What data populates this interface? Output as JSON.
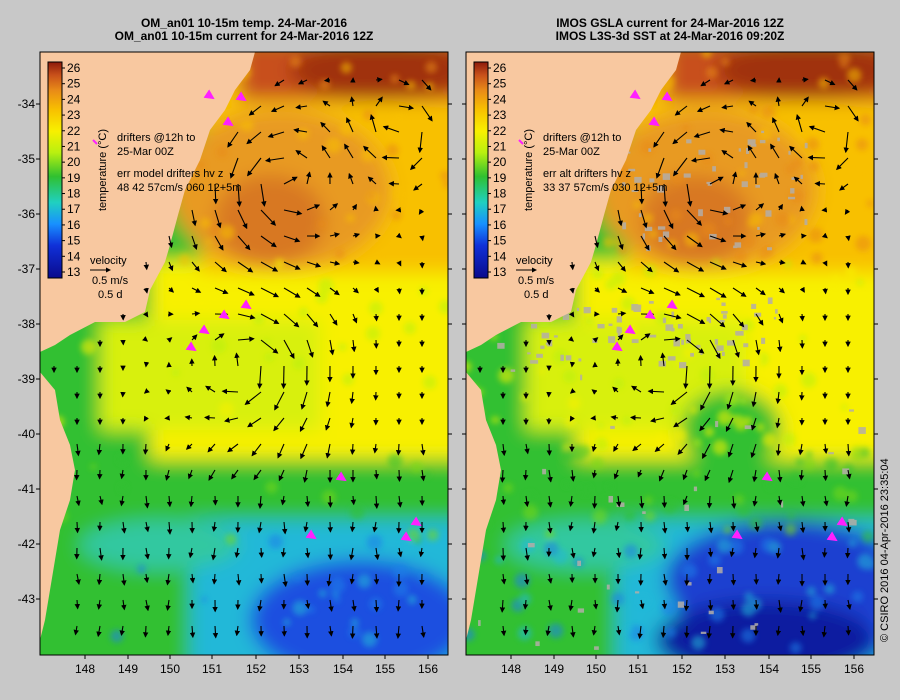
{
  "panels": [
    {
      "title_line1": "OM_an01 10-15m temp. 24-Mar-2016",
      "title_line2": "OM_an01 10-15m current for 24-Mar-2016 12Z",
      "drifters_line1": "drifters @12h to",
      "drifters_line2": "25-Mar 00Z",
      "err_line1": "err model drifters hv z",
      "err_line2": "48 42 57cm/s 060 12+5m",
      "velocity_label": "velocity",
      "velocity_speed": "0.5 m/s",
      "velocity_time": "0.5 d",
      "kind": "model"
    },
    {
      "title_line1": "IMOS GSLA current for 24-Mar-2016 12Z",
      "title_line2": "IMOS L3S-3d SST at 24-Mar-2016 09:20Z",
      "drifters_line1": "drifters @12h to",
      "drifters_line2": "25-Mar 00Z",
      "err_line1": "err alt drifters hv z",
      "err_line2": "33 37 57cm/s 030 12+5m",
      "velocity_label": "velocity",
      "velocity_speed": "0.5 m/s",
      "velocity_time": "0.5 d",
      "kind": "obs"
    }
  ],
  "colorbar": {
    "label": "temperature (°C)",
    "ticks": [
      "26",
      "25",
      "24",
      "23",
      "22",
      "21",
      "20",
      "19",
      "18",
      "17",
      "16",
      "15",
      "14",
      "13"
    ]
  },
  "lat_ticks": [
    "-34",
    "-35",
    "-36",
    "-37",
    "-38",
    "-39",
    "-40",
    "-41",
    "-42",
    "-43"
  ],
  "lon_ticks": [
    "148",
    "149",
    "150",
    "151",
    "152",
    "153",
    "154",
    "155",
    "156"
  ],
  "credit": "© CSIRO 2016  04-Apr-2016 23:35:04",
  "colors": {
    "land": "#f8c8a0",
    "background": "#c8c8c8",
    "drifter": "#ff20ff",
    "cloud": "#b4aea8"
  }
}
